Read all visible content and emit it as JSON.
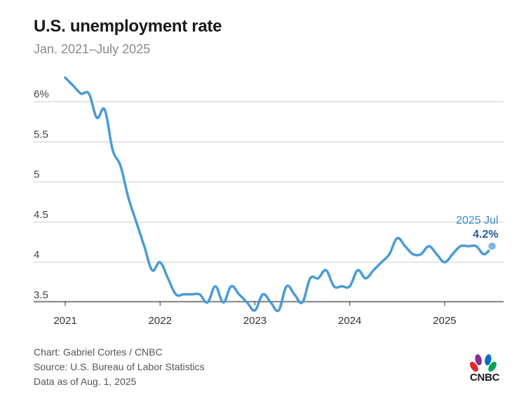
{
  "title": "U.S. unemployment rate",
  "subtitle": "Jan. 2021–July 2025",
  "footer": {
    "line1": "Chart: Gabriel Cortes / CNBC",
    "line2": "Source: U.S. Bureau of Labor Statistics",
    "line3": "Data as of Aug. 1, 2025"
  },
  "logo": {
    "text": "CNBC"
  },
  "colors": {
    "line": "#4a9bd6",
    "annotation_label": "#3d8ccb",
    "annotation_value": "#1f5c99",
    "grid": "#cccccc"
  },
  "chart_data": {
    "type": "line",
    "title": "U.S. unemployment rate",
    "subtitle": "Jan. 2021–July 2025",
    "xlabel": "",
    "ylabel": "",
    "ylim": [
      3.4,
      6.3
    ],
    "y_ticks": [
      {
        "value": 3.5,
        "label": "3.5"
      },
      {
        "value": 4,
        "label": "4"
      },
      {
        "value": 4.5,
        "label": "4.5"
      },
      {
        "value": 5,
        "label": "5"
      },
      {
        "value": 5.5,
        "label": "5.5"
      },
      {
        "value": 6,
        "label": "6%"
      }
    ],
    "x_ticks": [
      {
        "index": 0,
        "label": "2021"
      },
      {
        "index": 12,
        "label": "2022"
      },
      {
        "index": 24,
        "label": "2023"
      },
      {
        "index": 36,
        "label": "2024"
      },
      {
        "index": 48,
        "label": "2025"
      }
    ],
    "series": [
      {
        "name": "Unemployment rate",
        "start": "2021-01",
        "values": [
          6.3,
          6.2,
          6.1,
          6.1,
          5.8,
          5.9,
          5.4,
          5.2,
          4.8,
          4.5,
          4.2,
          3.9,
          4.0,
          3.8,
          3.6,
          3.6,
          3.6,
          3.6,
          3.5,
          3.7,
          3.5,
          3.7,
          3.6,
          3.5,
          3.4,
          3.6,
          3.5,
          3.4,
          3.7,
          3.6,
          3.5,
          3.8,
          3.8,
          3.9,
          3.7,
          3.7,
          3.7,
          3.9,
          3.8,
          3.9,
          4.0,
          4.1,
          4.3,
          4.2,
          4.1,
          4.1,
          4.2,
          4.1,
          4.0,
          4.1,
          4.2,
          4.2,
          4.2,
          4.1,
          4.2
        ]
      }
    ],
    "annotation": {
      "label": "2025 Jul",
      "value_label": "4.2%",
      "index": 54
    }
  }
}
